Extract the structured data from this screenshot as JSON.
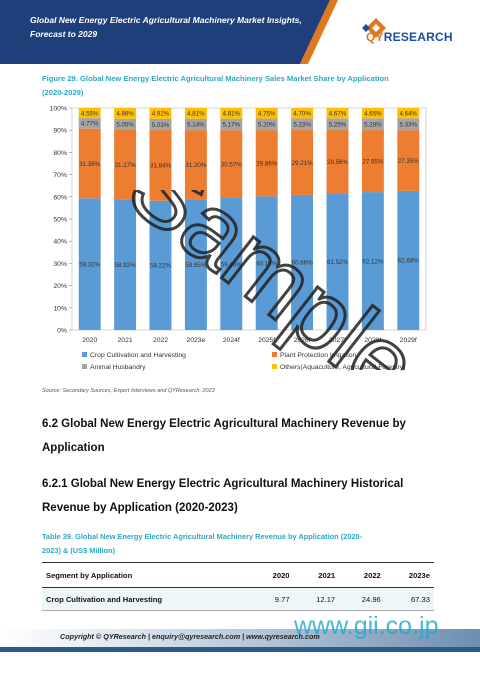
{
  "header": {
    "title_line1": "Global New Energy Electric Agricultural Machinery Market Insights,",
    "title_line2": "Forecast to 2029",
    "logo_qy": "QY",
    "logo_research": "RESEARCH",
    "colors": {
      "band": "#1f3f7a",
      "accent": "#e07820"
    }
  },
  "figure": {
    "caption_line1": "Figure 29.   Global New Energy Electric Agricultural Machinery Sales Market Share by Application",
    "caption_line2": "(2020-2029)"
  },
  "chart_data": {
    "type": "bar",
    "stacked": true,
    "categories": [
      "2020",
      "2021",
      "2022",
      "2023e",
      "2024f",
      "2025f",
      "2026f",
      "2027f",
      "2028f",
      "2029f"
    ],
    "y_ticks": [
      "0%",
      "10%",
      "20%",
      "30%",
      "40%",
      "50%",
      "60%",
      "70%",
      "80%",
      "90%",
      "100%"
    ],
    "ylim": [
      0,
      100
    ],
    "legend_position": "bottom",
    "series": [
      {
        "name": "Crop Cultivation and Harvesting",
        "color": "#5b9bd5",
        "values": [
          59.32,
          58.92,
          58.22,
          58.85,
          59.45,
          60.19,
          60.86,
          61.52,
          62.12,
          62.68
        ],
        "labels": [
          "59.32%",
          "58.92%",
          "58.22%",
          "58.85%",
          "59.45%",
          "60.19%",
          "60.86%",
          "61.52%",
          "62.12%",
          "62.68%"
        ]
      },
      {
        "name": "Plant Protection Irrigation",
        "color": "#ed7d31",
        "values": [
          31.36,
          31.17,
          31.84,
          31.2,
          30.57,
          29.86,
          29.21,
          28.56,
          27.95,
          27.35
        ],
        "labels": [
          "31.36%",
          "31.17%",
          "31.84%",
          "31.20%",
          "30.57%",
          "29.86%",
          "29.21%",
          "28.56%",
          "27.95%",
          "27.35%"
        ]
      },
      {
        "name": "Animal Husbandry",
        "color": "#a5a5a5",
        "values": [
          4.77,
          5.05,
          5.03,
          5.14,
          5.17,
          5.2,
          5.23,
          5.25,
          5.28,
          5.33
        ],
        "labels": [
          "4.77%",
          "5.05%",
          "5.03%",
          "5.14%",
          "5.17%",
          "5.20%",
          "5.23%",
          "5.25%",
          "5.28%",
          "5.33%"
        ]
      },
      {
        "name": "Others(Aquaculture, Agricultural Forestry)",
        "color": "#ffc000",
        "values": [
          4.55,
          4.86,
          4.92,
          4.81,
          4.81,
          4.75,
          4.7,
          4.67,
          4.65,
          4.64
        ],
        "labels": [
          "4.55%",
          "4.86%",
          "4.92%",
          "4.81%",
          "4.81%",
          "4.75%",
          "4.70%",
          "4.67%",
          "4.65%",
          "4.64%"
        ]
      }
    ]
  },
  "source_note": "Source: Secondary Sources, Expert Interviews and QYResearch, 2023",
  "section_62": {
    "line1": "6.2  Global New Energy Electric Agricultural Machinery Revenue by",
    "line2": "Application"
  },
  "section_621": {
    "line1": "6.2.1  Global New Energy Electric Agricultural Machinery Historical",
    "line2": "Revenue by Application (2020-2023)"
  },
  "table": {
    "caption_line1": "Table 39.   Global New Energy Electric Agricultural Machinery Revenue by Application (2020-",
    "caption_line2": "2023) & (US$ Million)",
    "headers": [
      "Segment by Application",
      "2020",
      "2021",
      "2022",
      "2023e"
    ],
    "rows": [
      {
        "segment": "Crop Cultivation and Harvesting",
        "values": [
          "9.77",
          "12.17",
          "24.96",
          "67.33"
        ]
      }
    ]
  },
  "footer": {
    "text": "Copyright © QYResearch | enquiry@qyresearch.com | www.qyresearch.com"
  },
  "watermark": {
    "text": "Sample",
    "gii_text": "www.gii.co.jp"
  }
}
